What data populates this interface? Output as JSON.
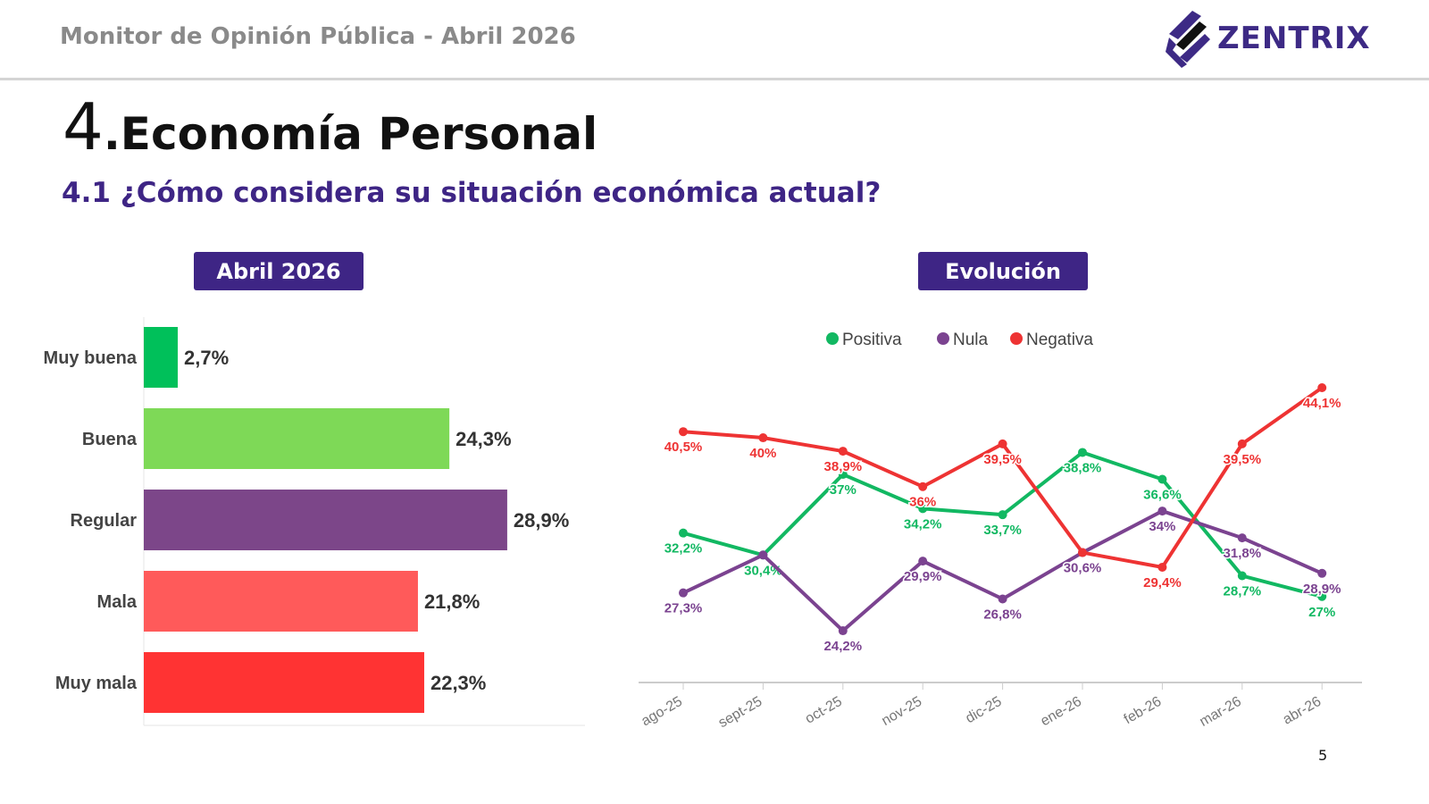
{
  "header": {
    "title": "Monitor de Opinión Pública - Abril 2026",
    "logo_text": "ZENTRIX"
  },
  "section": {
    "number": "4",
    "title": ".Economía Personal",
    "question": "4.1 ¿Cómo considera su situación económica actual?"
  },
  "badges": {
    "left": "Abril 2026",
    "right": "Evolución"
  },
  "page_number": "5",
  "chart_data": [
    {
      "type": "bar",
      "orientation": "horizontal",
      "title": "Abril 2026",
      "categories": [
        "Muy buena",
        "Buena",
        "Regular",
        "Mala",
        "Muy mala"
      ],
      "values": [
        2.7,
        24.3,
        28.9,
        21.8,
        22.3
      ],
      "labels": [
        "2,7%",
        "24,3%",
        "28,9%",
        "21,8%",
        "22,3%"
      ],
      "colors": [
        "#00c05a",
        "#7ed957",
        "#7c4689",
        "#ff5a5a",
        "#ff3333"
      ]
    },
    {
      "type": "line",
      "title": "Evolución",
      "legend_position": "top",
      "x": [
        "ago-25",
        "sept-25",
        "oct-25",
        "nov-25",
        "dic-25",
        "ene-26",
        "feb-26",
        "mar-26",
        "abr-26"
      ],
      "series": [
        {
          "name": "Positiva",
          "color": "#12b862",
          "values": [
            32.2,
            30.4,
            37,
            34.2,
            33.7,
            38.8,
            36.6,
            28.7,
            27
          ],
          "labels": [
            "32,2%",
            "30,4%",
            "37%",
            "34,2%",
            "33,7%",
            "38,8%",
            "36,6%",
            "28,7%",
            "27%"
          ]
        },
        {
          "name": "Nula",
          "color": "#7b4390",
          "values": [
            27.3,
            30.4,
            24.2,
            29.9,
            26.8,
            30.6,
            34,
            31.8,
            28.9
          ],
          "labels": [
            "27,3%",
            "",
            "24,2%",
            "29,9%",
            "26,8%",
            "30,6%",
            "34%",
            "31,8%",
            "28,9%"
          ]
        },
        {
          "name": "Negativa",
          "color": "#ee3333",
          "values": [
            40.5,
            40,
            38.9,
            36,
            39.5,
            30.6,
            29.4,
            39.5,
            44.1
          ],
          "labels": [
            "40,5%",
            "40%",
            "38,9%",
            "36%",
            "39,5%",
            "",
            "29,4%",
            "39,5%",
            "44,1%"
          ]
        }
      ]
    }
  ]
}
